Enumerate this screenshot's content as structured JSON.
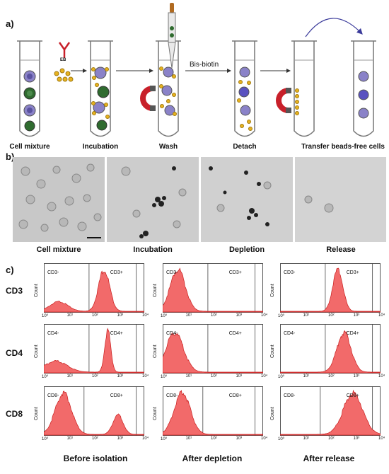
{
  "panel_labels": {
    "a": "a)",
    "b": "b)",
    "c": "c)"
  },
  "steps": [
    "Cell mixture",
    "Incubation",
    "Wash",
    "Detach",
    "Transfer beads-free cells"
  ],
  "eb_label": "EB",
  "bis_biotin": "Bis-biotin",
  "micro_labels": [
    "Cell mixture",
    "Incubation",
    "Depletion",
    "Release"
  ],
  "row_labels": [
    "CD3",
    "CD4",
    "CD8"
  ],
  "col_labels": [
    "Before isolation",
    "After depletion",
    "After release"
  ],
  "count_label": "Count",
  "gates": [
    [
      "CD3-",
      "CD3+"
    ],
    [
      "CD4-",
      "CD4+"
    ],
    [
      "CD8-",
      "CD8+"
    ]
  ],
  "x_ticks": [
    "10⁰",
    "10¹",
    "10²",
    "10³",
    "10⁴"
  ],
  "chart_data": {
    "type": "area",
    "rows": [
      "CD3",
      "CD4",
      "CD8"
    ],
    "columns": [
      "Before isolation",
      "After depletion",
      "After release"
    ],
    "xscale": "log",
    "xlim": [
      1,
      10000
    ],
    "histograms": [
      [
        {
          "peaks": [
            {
              "x": 4,
              "h": 0.22,
              "w": 0.35
            },
            {
              "x": 250,
              "h": 0.95,
              "w": 0.22
            }
          ]
        },
        {
          "peaks": [
            {
              "x": 4,
              "h": 0.95,
              "w": 0.3
            }
          ]
        },
        {
          "peaks": [
            {
              "x": 200,
              "h": 0.95,
              "w": 0.2
            }
          ]
        }
      ],
      [
        {
          "peaks": [
            {
              "x": 3,
              "h": 0.25,
              "w": 0.45
            },
            {
              "x": 350,
              "h": 0.95,
              "w": 0.12
            }
          ]
        },
        {
          "peaks": [
            {
              "x": 3,
              "h": 0.9,
              "w": 0.35
            }
          ]
        },
        {
          "peaks": [
            {
              "x": 350,
              "h": 0.9,
              "w": 0.28
            }
          ]
        }
      ],
      [
        {
          "peaks": [
            {
              "x": 6,
              "h": 0.95,
              "w": 0.32
            },
            {
              "x": 900,
              "h": 0.45,
              "w": 0.2
            }
          ]
        },
        {
          "peaks": [
            {
              "x": 6,
              "h": 0.95,
              "w": 0.32
            }
          ]
        },
        {
          "peaks": [
            {
              "x": 800,
              "h": 0.95,
              "w": 0.38
            }
          ]
        }
      ]
    ]
  },
  "colors": {
    "hist": "#f26a6a",
    "hist_line": "#c81e1e",
    "green": "#2f6b2f",
    "purple": "#8a82c8",
    "bead": "#e7b21f",
    "magnet_red": "#c8202a"
  }
}
